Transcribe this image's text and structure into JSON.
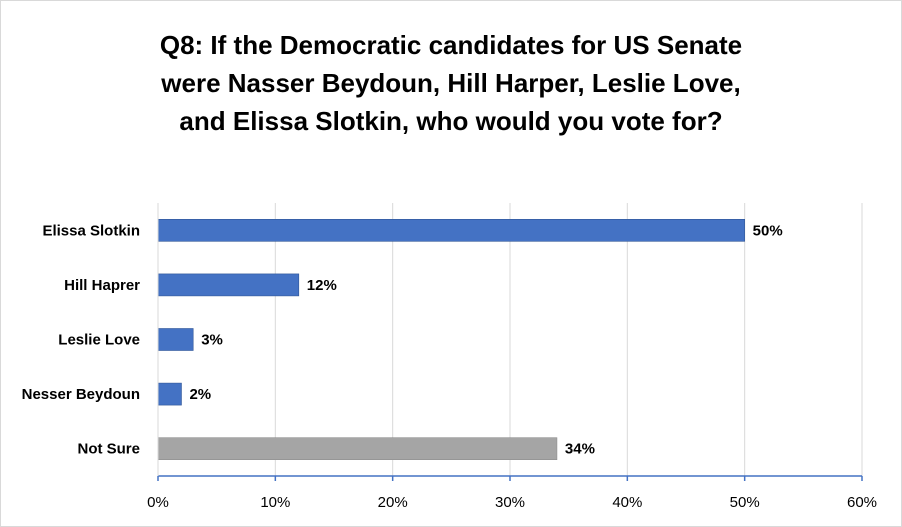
{
  "chart_data": {
    "type": "bar",
    "orientation": "horizontal",
    "title_lines": [
      "Q8: If the Democratic candidates for US Senate",
      "were Nasser Beydoun, Hill Harper, Leslie Love,",
      "and Elissa Slotkin, who would you vote for?"
    ],
    "categories": [
      "Elissa Slotkin",
      "Hill Haprer",
      "Leslie Love",
      "Nesser Beydoun",
      "Not Sure"
    ],
    "values": [
      50,
      12,
      3,
      2,
      34
    ],
    "value_labels": [
      "50%",
      "12%",
      "3%",
      "2%",
      "34%"
    ],
    "bar_colors": [
      "#4472c4",
      "#4472c4",
      "#4472c4",
      "#4472c4",
      "#a5a5a5"
    ],
    "xlim": [
      0,
      60
    ],
    "xticks": [
      0,
      10,
      20,
      30,
      40,
      50,
      60
    ],
    "xtick_labels": [
      "0%",
      "10%",
      "20%",
      "30%",
      "40%",
      "50%",
      "60%"
    ],
    "grid": "vertical",
    "legend": "none"
  }
}
